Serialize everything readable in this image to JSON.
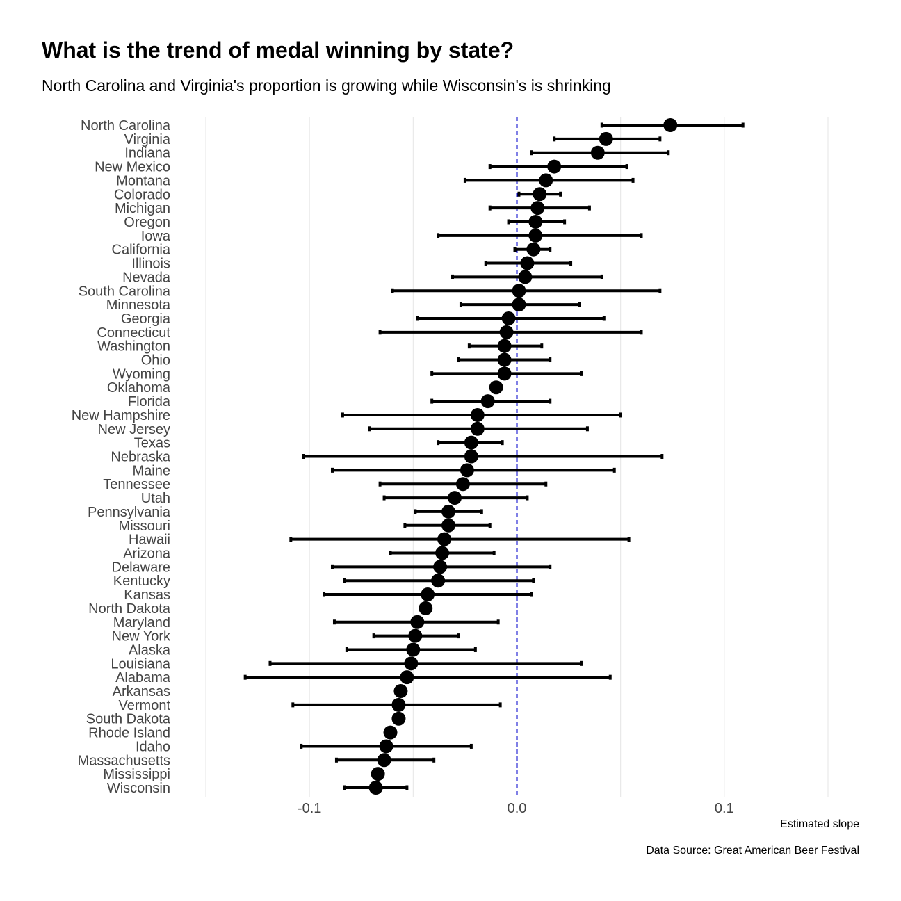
{
  "chart_data": {
    "type": "dot-errorbar",
    "title": "What is the trend of medal winning by state?",
    "subtitle": "North Carolina and Virginia's proportion is growing while Wisconsin's is shrinking",
    "xlabel": "Estimated slope",
    "caption": "Data Source: Great American Beer Festival",
    "xlim": [
      -0.15,
      0.15
    ],
    "x_ticks": [
      -0.1,
      0.0,
      0.1
    ],
    "x_tick_labels": [
      "-0.1",
      "0.0",
      "0.1"
    ],
    "reference_line": {
      "x": 0,
      "color": "#0000cc",
      "style": "dashed"
    },
    "grid": "vertical",
    "colors": {
      "point": "#000000",
      "errorbar": "#000000",
      "grid": "#e5e5e5"
    },
    "points": [
      {
        "state": "North Carolina",
        "estimate": 0.074,
        "low": 0.041,
        "high": 0.109
      },
      {
        "state": "Virginia",
        "estimate": 0.043,
        "low": 0.018,
        "high": 0.069
      },
      {
        "state": "Indiana",
        "estimate": 0.039,
        "low": 0.007,
        "high": 0.073
      },
      {
        "state": "New Mexico",
        "estimate": 0.018,
        "low": -0.013,
        "high": 0.053
      },
      {
        "state": "Montana",
        "estimate": 0.014,
        "low": -0.025,
        "high": 0.056
      },
      {
        "state": "Colorado",
        "estimate": 0.011,
        "low": 0.001,
        "high": 0.021
      },
      {
        "state": "Michigan",
        "estimate": 0.01,
        "low": -0.013,
        "high": 0.035
      },
      {
        "state": "Oregon",
        "estimate": 0.009,
        "low": -0.004,
        "high": 0.023
      },
      {
        "state": "Iowa",
        "estimate": 0.009,
        "low": -0.038,
        "high": 0.06
      },
      {
        "state": "California",
        "estimate": 0.008,
        "low": -0.001,
        "high": 0.016
      },
      {
        "state": "Illinois",
        "estimate": 0.005,
        "low": -0.015,
        "high": 0.026
      },
      {
        "state": "Nevada",
        "estimate": 0.004,
        "low": -0.031,
        "high": 0.041
      },
      {
        "state": "South Carolina",
        "estimate": 0.001,
        "low": -0.06,
        "high": 0.069
      },
      {
        "state": "Minnesota",
        "estimate": 0.001,
        "low": -0.027,
        "high": 0.03
      },
      {
        "state": "Georgia",
        "estimate": -0.004,
        "low": -0.048,
        "high": 0.042
      },
      {
        "state": "Connecticut",
        "estimate": -0.005,
        "low": -0.066,
        "high": 0.06
      },
      {
        "state": "Washington",
        "estimate": -0.006,
        "low": -0.023,
        "high": 0.012
      },
      {
        "state": "Ohio",
        "estimate": -0.006,
        "low": -0.028,
        "high": 0.016
      },
      {
        "state": "Wyoming",
        "estimate": -0.006,
        "low": -0.041,
        "high": 0.031
      },
      {
        "state": "Oklahoma",
        "estimate": -0.01,
        "low": -0.01,
        "high": -0.01
      },
      {
        "state": "Florida",
        "estimate": -0.014,
        "low": -0.041,
        "high": 0.016
      },
      {
        "state": "New Hampshire",
        "estimate": -0.019,
        "low": -0.084,
        "high": 0.05
      },
      {
        "state": "New Jersey",
        "estimate": -0.019,
        "low": -0.071,
        "high": 0.034
      },
      {
        "state": "Texas",
        "estimate": -0.022,
        "low": -0.038,
        "high": -0.007
      },
      {
        "state": "Nebraska",
        "estimate": -0.022,
        "low": -0.103,
        "high": 0.07
      },
      {
        "state": "Maine",
        "estimate": -0.024,
        "low": -0.089,
        "high": 0.047
      },
      {
        "state": "Tennessee",
        "estimate": -0.026,
        "low": -0.066,
        "high": 0.014
      },
      {
        "state": "Utah",
        "estimate": -0.03,
        "low": -0.064,
        "high": 0.005
      },
      {
        "state": "Pennsylvania",
        "estimate": -0.033,
        "low": -0.049,
        "high": -0.017
      },
      {
        "state": "Missouri",
        "estimate": -0.033,
        "low": -0.054,
        "high": -0.013
      },
      {
        "state": "Hawaii",
        "estimate": -0.035,
        "low": -0.109,
        "high": 0.054
      },
      {
        "state": "Arizona",
        "estimate": -0.036,
        "low": -0.061,
        "high": -0.011
      },
      {
        "state": "Delaware",
        "estimate": -0.037,
        "low": -0.089,
        "high": 0.016
      },
      {
        "state": "Kentucky",
        "estimate": -0.038,
        "low": -0.083,
        "high": 0.008
      },
      {
        "state": "Kansas",
        "estimate": -0.043,
        "low": -0.093,
        "high": 0.007
      },
      {
        "state": "North Dakota",
        "estimate": -0.044,
        "low": -0.044,
        "high": -0.044
      },
      {
        "state": "Maryland",
        "estimate": -0.048,
        "low": -0.088,
        "high": -0.009
      },
      {
        "state": "New York",
        "estimate": -0.049,
        "low": -0.069,
        "high": -0.028
      },
      {
        "state": "Alaska",
        "estimate": -0.05,
        "low": -0.082,
        "high": -0.02
      },
      {
        "state": "Louisiana",
        "estimate": -0.051,
        "low": -0.119,
        "high": 0.031
      },
      {
        "state": "Alabama",
        "estimate": -0.053,
        "low": -0.131,
        "high": 0.045
      },
      {
        "state": "Arkansas",
        "estimate": -0.056,
        "low": -0.056,
        "high": -0.056
      },
      {
        "state": "Vermont",
        "estimate": -0.057,
        "low": -0.108,
        "high": -0.008
      },
      {
        "state": "South Dakota",
        "estimate": -0.057,
        "low": -0.057,
        "high": -0.057
      },
      {
        "state": "Rhode Island",
        "estimate": -0.061,
        "low": -0.061,
        "high": -0.061
      },
      {
        "state": "Idaho",
        "estimate": -0.063,
        "low": -0.104,
        "high": -0.022
      },
      {
        "state": "Massachusetts",
        "estimate": -0.064,
        "low": -0.087,
        "high": -0.04
      },
      {
        "state": "Mississippi",
        "estimate": -0.067,
        "low": -0.067,
        "high": -0.067
      },
      {
        "state": "Wisconsin",
        "estimate": -0.068,
        "low": -0.083,
        "high": -0.053
      }
    ]
  }
}
